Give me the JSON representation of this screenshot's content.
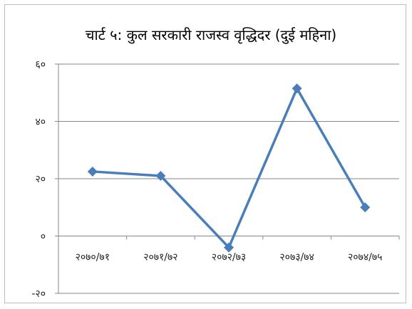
{
  "chart_data": {
    "type": "line",
    "title": "चार्ट ५: कुल सरकारी राजस्व वृद्धिदर (दुई महिना)",
    "categories": [
      "२०७०/७१",
      "२०७१/७२",
      "२०७२/७३",
      "२०७३/७४",
      "२०७४/७५"
    ],
    "series": [
      {
        "values": [
          22.5,
          21,
          -4,
          51.5,
          10
        ]
      }
    ],
    "ylim": [
      -20,
      60
    ],
    "yticks": [
      -20,
      0,
      20,
      40,
      60
    ],
    "ytick_labels": [
      "-२०",
      "०",
      "२०",
      "४०",
      "६०"
    ],
    "xlabel": "",
    "ylabel": "",
    "grid": true,
    "legend": "none",
    "colors": {
      "line": "#4a7ebb",
      "grid": "#878787",
      "axis": "#878787"
    }
  }
}
